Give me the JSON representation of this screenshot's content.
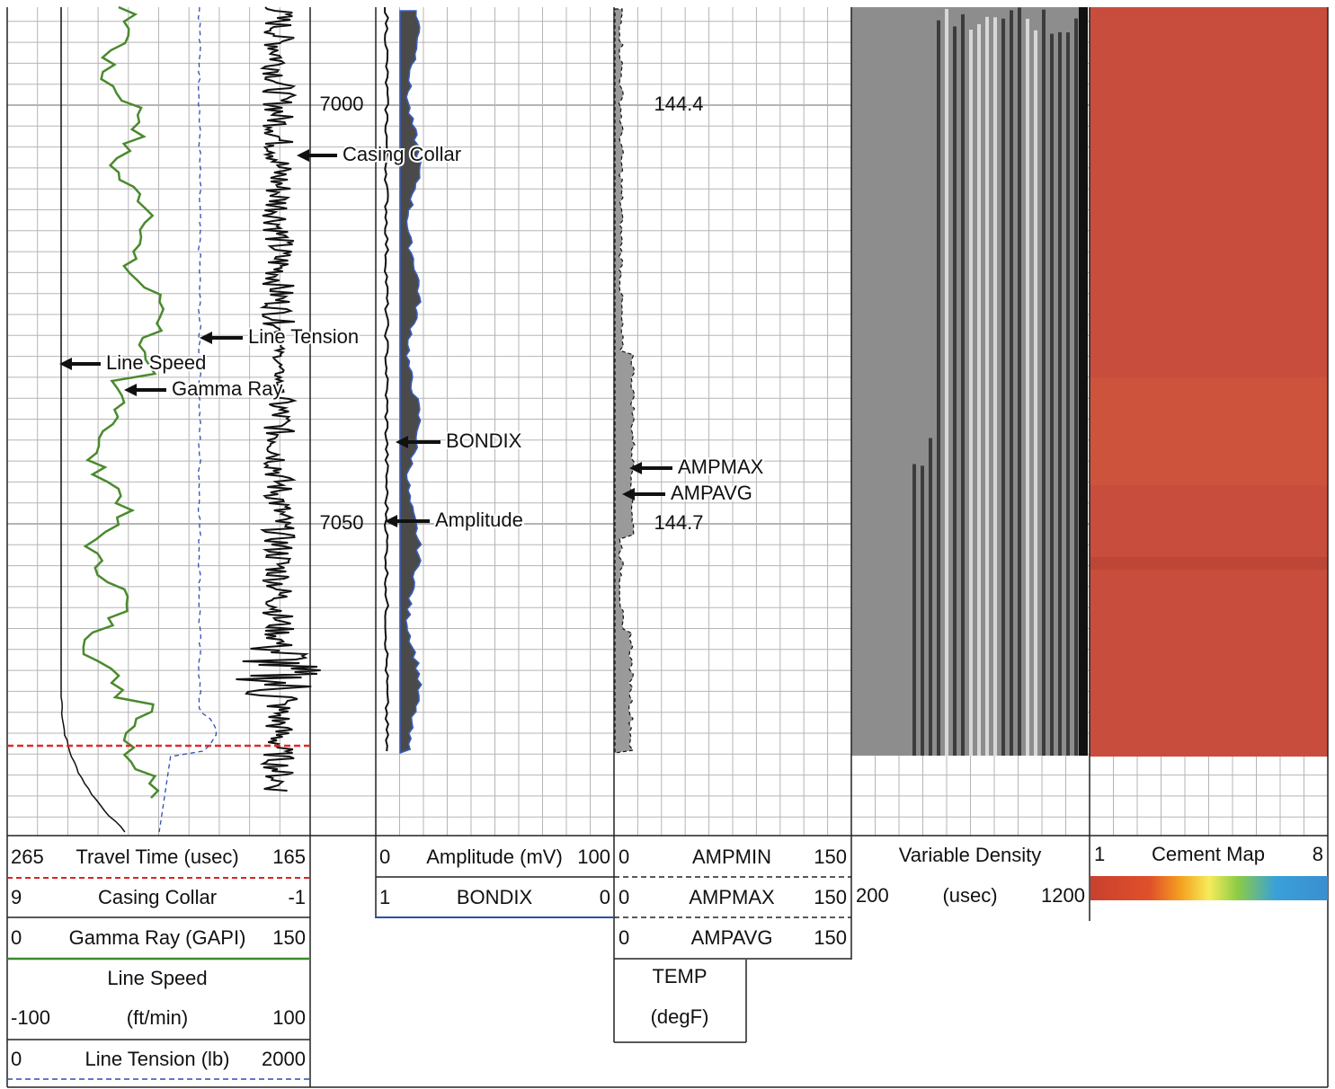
{
  "depth_track": {
    "labels": [
      "7000",
      "7050"
    ]
  },
  "temp_track": {
    "labels": [
      "144.4",
      "144.7"
    ]
  },
  "annotations": [
    "Casing Collar",
    "Line Tension",
    "Line Speed",
    "Gamma Ray",
    "BONDIX",
    "Amplitude",
    "AMPMAX",
    "AMPAVG"
  ],
  "headers": {
    "track1": [
      {
        "left": "265",
        "name": "Travel Time (usec)",
        "right": "165"
      },
      {
        "left": "9",
        "name": "Casing Collar",
        "right": "-1"
      },
      {
        "left": "0",
        "name": "Gamma Ray (GAPI)",
        "right": "150"
      },
      {
        "name": "Line Speed",
        "left": "-100",
        "unit": "(ft/min)",
        "right": "100"
      },
      {
        "left": "0",
        "name": "Line Tension (lb)",
        "right": "2000"
      }
    ],
    "track2": [
      {
        "left": "0",
        "name": "Amplitude (mV)",
        "right": "100"
      },
      {
        "left": "1",
        "name": "BONDIX",
        "right": "0"
      }
    ],
    "track3": [
      {
        "left": "0",
        "name": "AMPMIN",
        "right": "150"
      },
      {
        "left": "0",
        "name": "AMPMAX",
        "right": "150"
      },
      {
        "left": "0",
        "name": "AMPAVG",
        "right": "150"
      },
      {
        "name": "TEMP",
        "unit": "(degF)"
      }
    ],
    "vdl": {
      "name": "Variable Density",
      "left": "200",
      "unit": "(usec)",
      "right": "1200"
    },
    "cement": {
      "left": "1",
      "name": "Cement Map",
      "right": "8"
    }
  }
}
